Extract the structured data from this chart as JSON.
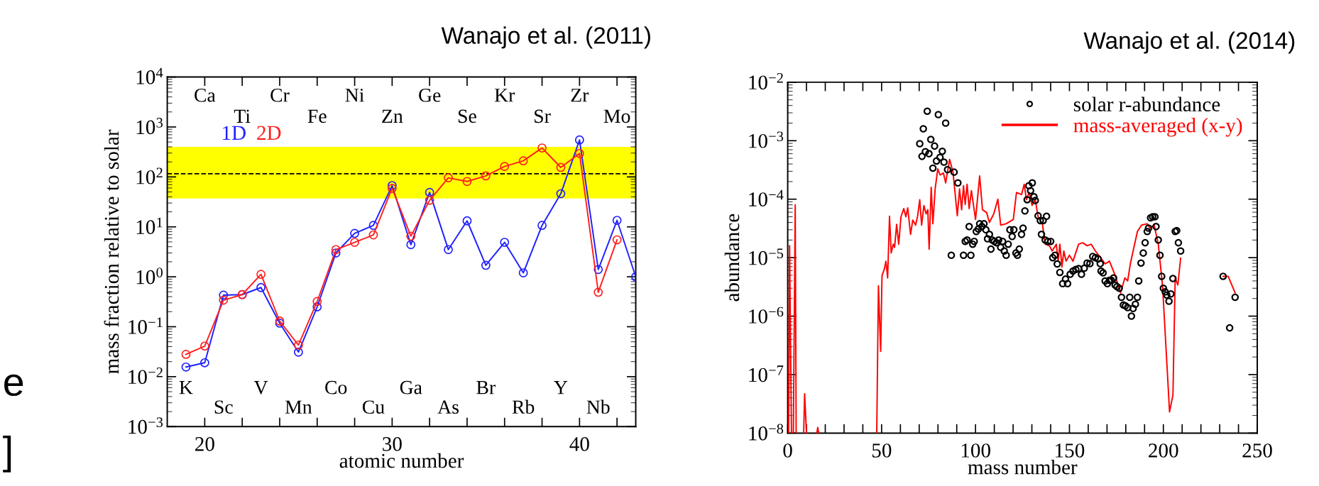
{
  "chart_data": [
    {
      "type": "line",
      "title": "Wanajo et al. (2011)",
      "xlabel": "atomic number",
      "ylabel": "mass fraction relative to solar",
      "log": "y",
      "marker": "circle",
      "line_style": "solid",
      "xlim": [
        18,
        43
      ],
      "ylim": [
        0.001,
        10000
      ],
      "xticks": [
        20,
        {
          "value": 22,
          "label": null
        },
        {
          "value": 24,
          "label": null
        },
        {
          "value": 26,
          "label": null
        },
        {
          "value": 28,
          "label": null
        },
        30,
        {
          "value": 32,
          "label": null
        },
        {
          "value": 34,
          "label": null
        },
        {
          "value": 36,
          "label": null
        },
        {
          "value": 38,
          "label": null
        },
        40,
        {
          "value": 42,
          "label": null
        }
      ],
      "yticks": [
        {
          "value": 0.001,
          "label": "10$^{−3}$"
        },
        {
          "value": 0.01,
          "label": "10$^{−2}$"
        },
        {
          "value": 0.1,
          "label": "10$^{−1}$"
        },
        {
          "value": 1,
          "label": "10$^{0}$"
        },
        {
          "value": 10,
          "label": "10$^{1}$"
        },
        {
          "value": 100,
          "label": "10$^{2}$"
        },
        {
          "value": 1000,
          "label": "10$^{3}$"
        },
        {
          "value": 10000,
          "label": "10$^{4}$"
        }
      ],
      "bands": [
        {
          "axis": "y",
          "from": 37,
          "to": 400,
          "color": "#ffff00"
        }
      ],
      "ref_lines": [
        {
          "axis": "y",
          "value": 116,
          "color": "#000000",
          "line_style": "dashed"
        }
      ],
      "series": [
        {
          "name": "1D",
          "color": "#2020ff",
          "x": [
            19,
            20,
            21,
            22,
            23,
            24,
            25,
            26,
            27,
            28,
            29,
            30,
            31,
            32,
            33,
            34,
            35,
            36,
            37,
            38,
            39,
            40,
            41,
            42,
            43
          ],
          "values": [
            0.0156,
            0.019,
            0.43,
            0.44,
            0.61,
            0.118,
            0.031,
            0.25,
            3.0,
            7.4,
            10.7,
            67,
            4.4,
            49,
            3.5,
            13.2,
            1.7,
            4.9,
            1.2,
            10.7,
            46,
            550,
            1.4,
            13.5,
            1.0
          ]
        },
        {
          "name": "2D",
          "color": "#ff2020",
          "x": [
            19,
            20,
            21,
            22,
            23,
            24,
            25,
            26,
            27,
            28,
            29,
            30,
            31,
            32,
            33,
            34,
            35,
            36,
            37,
            38,
            39,
            40,
            41,
            42
          ],
          "values": [
            0.028,
            0.041,
            0.34,
            0.44,
            1.12,
            0.13,
            0.043,
            0.32,
            3.5,
            4.9,
            6.9,
            59,
            6.5,
            34,
            96,
            81,
            105,
            162,
            210,
            380,
            155,
            295,
            0.49,
            5.5
          ]
        }
      ],
      "annotations": [
        "e",
        "]",
        "Ca",
        "Cr",
        "Ni",
        "Ge",
        "Kr",
        "Zr",
        "Ti",
        "Fe",
        "Zn",
        "Se",
        "Sr",
        "Mo",
        "K",
        "V",
        "Co",
        "Ga",
        "Br",
        "Y",
        "Sc",
        "Mn",
        "Cu",
        "As",
        "Rb",
        "Nb"
      ]
    },
    {
      "type": "line",
      "title": "Wanajo et al. (2014)",
      "xlabel": "mass number",
      "ylabel": "abundance",
      "log": "y",
      "legend": "top right",
      "xlim": [
        0,
        250
      ],
      "ylim": [
        1e-08,
        0.01
      ],
      "xticks": [
        0,
        {
          "value": 10,
          "label": null
        },
        {
          "value": 20,
          "label": null
        },
        {
          "value": 30,
          "label": null
        },
        {
          "value": 40,
          "label": null
        },
        50,
        {
          "value": 60,
          "label": null
        },
        {
          "value": 70,
          "label": null
        },
        {
          "value": 80,
          "label": null
        },
        {
          "value": 90,
          "label": null
        },
        100,
        {
          "value": 110,
          "label": null
        },
        {
          "value": 120,
          "label": null
        },
        {
          "value": 130,
          "label": null
        },
        {
          "value": 140,
          "label": null
        },
        150,
        {
          "value": 160,
          "label": null
        },
        {
          "value": 170,
          "label": null
        },
        {
          "value": 180,
          "label": null
        },
        {
          "value": 190,
          "label": null
        },
        200,
        {
          "value": 210,
          "label": null
        },
        {
          "value": 220,
          "label": null
        },
        {
          "value": 230,
          "label": null
        },
        {
          "value": 240,
          "label": null
        },
        250
      ],
      "yticks": [
        {
          "value": 1e-08,
          "label": "10$^{−8}$"
        },
        {
          "value": 1e-07,
          "label": "10$^{−7}$"
        },
        {
          "value": 1e-06,
          "label": "10$^{−6}$"
        },
        {
          "value": 1e-05,
          "label": "10$^{−5}$"
        },
        {
          "value": 0.0001,
          "label": "10$^{−4}$"
        },
        {
          "value": 0.001,
          "label": "10$^{−3}$"
        },
        {
          "value": 0.01,
          "label": "10$^{−2}$"
        }
      ],
      "series": [
        {
          "name": "solar r-abundance",
          "type": "scatter",
          "marker": "circle",
          "color": "#000000",
          "x": [
            70.3,
            71.5,
            72.2,
            73.3,
            74.3,
            75.2,
            76.2,
            77.3,
            78.2,
            79.2,
            80.2,
            81.1,
            82.3,
            83.2,
            84.1,
            85.1,
            87.1,
            88.6,
            90.6,
            93.6,
            94.5,
            95.5,
            96.6,
            97.5,
            98.5,
            99.3,
            100.4,
            101.5,
            102.2,
            103.4,
            104.5,
            105.5,
            106.4,
            107.4,
            108.2,
            108.9,
            110.0,
            111.1,
            112.3,
            113.4,
            114.4,
            115.3,
            116.3,
            117.4,
            118.3,
            119.5,
            120.4,
            121.5,
            122.3,
            123.3,
            124.5,
            125.3,
            126.3,
            127.5,
            128.4,
            129.3,
            130.2,
            131.1,
            131.8,
            133.3,
            134.5,
            135.1,
            136.0,
            137.1,
            137.8,
            138.5,
            140.0,
            141.1,
            142.3,
            143.5,
            144.9,
            146.4,
            147.9,
            149.0,
            150.4,
            151.9,
            153.4,
            154.9,
            156.4,
            157.9,
            159.4,
            160.9,
            162.4,
            163.8,
            165.3,
            166.4,
            166.8,
            167.9,
            169.0,
            170.2,
            171.3,
            172.3,
            173.5,
            174.3,
            175.3,
            176.5,
            177.7,
            178.7,
            179.8,
            181.0,
            182.1,
            183.0,
            183.9,
            185.1,
            186.2,
            186.9,
            188.1,
            189.3,
            190.3,
            191.4,
            192.1,
            193.2,
            194.3,
            195.5,
            196.1,
            197.3,
            198.2,
            199.1,
            200.0,
            201.0,
            201.8,
            203.0,
            204.0,
            205.1,
            206.3,
            207.1,
            208.0,
            209.2,
            231.8,
            235.3,
            238.2
          ],
          "values": [
            0.00089,
            0.00054,
            0.0016,
            0.00065,
            0.0032,
            0.0006,
            0.00105,
            0.00034,
            0.00081,
            0.00045,
            0.0028,
            0.00052,
            0.00066,
            0.00043,
            0.002,
            0.00032,
            1.1e-05,
            0.00029,
            0.00019,
            1.1e-05,
            1.9e-05,
            2e-05,
            3.4e-05,
            1.1e-05,
            1.7e-05,
            1.9e-05,
            2.8e-05,
            3.1e-05,
            3.8e-05,
            3.4e-05,
            3.8e-05,
            3e-05,
            2.1e-05,
            2.5e-05,
            1.4e-05,
            2e-05,
            1.9e-05,
            1.8e-05,
            2e-05,
            1.5e-05,
            1.9e-05,
            1.3e-05,
            1.1e-05,
            1.7e-05,
            3e-05,
            2.3e-05,
            3e-05,
            1.2e-05,
            1.1e-05,
            1.4e-05,
            2.5e-05,
            3.2e-05,
            6.3e-05,
            9.8e-05,
            0.00017,
            0.00014,
            0.00019,
            0.00011,
            9.5e-05,
            5.2e-05,
            4.3e-05,
            2.5e-05,
            4.3e-05,
            2e-05,
            5.1e-05,
            1.9e-05,
            1.9e-05,
            1e-05,
            1.1e-05,
            7.8e-06,
            5.6e-06,
            3.6e-06,
            4.3e-06,
            3.6e-06,
            5.2e-06,
            5.9e-06,
            6.3e-06,
            6.5e-06,
            5.2e-06,
            6.6e-06,
            8.1e-06,
            7.9e-06,
            1.05e-05,
            1e-05,
            9.5e-06,
            7.9e-06,
            5.9e-06,
            5.5e-06,
            4e-06,
            3.6e-06,
            4.1e-06,
            4.1e-06,
            4.5e-06,
            3.4e-06,
            3.2e-06,
            3e-06,
            2.1e-06,
            1.55e-06,
            1.5e-06,
            1.4e-06,
            2.1e-06,
            1e-06,
            1.35e-06,
            1.6e-06,
            2.1e-06,
            4e-06,
            8.1e-06,
            1.2e-05,
            1.8e-05,
            2.8e-05,
            3.2e-05,
            4.8e-05,
            5e-05,
            5e-05,
            3.4e-05,
            2e-05,
            1.1e-05,
            4.8e-06,
            3e-06,
            2.6e-06,
            2.3e-06,
            1.8e-06,
            2.4e-06,
            4.4e-06,
            2.8e-05,
            2.9e-05,
            1.8e-05,
            1.3e-05,
            4.8e-06,
            6.3e-07,
            2.1e-06
          ]
        },
        {
          "name": "mass-averaged (x-y)",
          "type": "line",
          "color": "#ff0000",
          "x": [
            0.5,
            1,
            2,
            3,
            4,
            4.5,
            6,
            8.5,
            9,
            10,
            13,
            15.5,
            16,
            16.5,
            30,
            47.4,
            48.3,
            49.5,
            50.2,
            51.4,
            52.3,
            53.2,
            54.2,
            55.1,
            56.2,
            56.9,
            58.0,
            59.1,
            60.3,
            61.8,
            62.9,
            63.9,
            65.4,
            66.6,
            68.1,
            69.2,
            70.3,
            71.3,
            72.5,
            73.7,
            74.6,
            75.3,
            76.4,
            77.3,
            78.5,
            79.9,
            81.1,
            82.9,
            84.1,
            86.2,
            88.0,
            90.3,
            91.5,
            92.6,
            93.6,
            94.5,
            95.5,
            96.6,
            97.8,
            100.0,
            102.2,
            103.7,
            105.9,
            107.4,
            109.7,
            111.9,
            113.4,
            116.3,
            120.1,
            121.8,
            124.5,
            125.9,
            127.1,
            128.6,
            130.1,
            131.8,
            133.3,
            135.6,
            137.1,
            139.3,
            140.8,
            143.0,
            144.0,
            144.9,
            146.0,
            147.0,
            148.2,
            150,
            151.9,
            154.9,
            157.1,
            159.4,
            161.6,
            163.8,
            166.8,
            169.0,
            171.3,
            174.3,
            177.2,
            179.5,
            181.0,
            182.4,
            183.9,
            186.2,
            188.4,
            191.4,
            192.9,
            195.1,
            197.3,
            199.6,
            203.3,
            205.1,
            206.3,
            207.7,
            209.2,
            220,
            231.8,
            234.5,
            238.2
          ],
          "values": [
            1e-08,
            1.6e-05,
            1e-08,
            1e-08,
            8e-05,
            1e-08,
            null,
            1e-08,
            4.7e-08,
            1e-08,
            null,
            1e-08,
            1.25e-08,
            1e-08,
            null,
            1e-08,
            3.3e-06,
            2.5e-07,
            4.9e-06,
            6.3e-06,
            8.7e-06,
            4.5e-06,
            5.1e-05,
            1.2e-05,
            1.7e-05,
            1.5e-05,
            3.7e-05,
            1.7e-05,
            5e-05,
            6.9e-05,
            5e-05,
            7.1e-05,
            2.5e-05,
            4.4e-05,
            3.6e-05,
            5.2e-05,
            9.8e-05,
            3.6e-05,
            7.8e-05,
            5.6e-05,
            6.6e-05,
            1.4e-05,
            0.00016,
            3.8e-05,
            0.00015,
            0.00033,
            0.00026,
            0.00028,
            0.00019,
            0.00048,
            0.00029,
            5.2e-05,
            0.00015,
            6.6e-05,
            0.00017,
            8.1e-05,
            0.00018,
            6.9e-05,
            0.00014,
            4.5e-05,
            0.00025,
            6.6e-05,
            5.9e-05,
            4e-05,
            5.6e-05,
            0.0001,
            3.6e-05,
            3.8e-05,
            4.5e-05,
            0.00013,
            0.00012,
            0.00018,
            9.8e-05,
            0.00013,
            7.8e-05,
            9.8e-05,
            5e-05,
            3.8e-05,
            1.7e-05,
            1.6e-05,
            1.3e-05,
            1.7e-05,
            8.7e-06,
            1.7e-05,
            6.9e-06,
            1.3e-05,
            8.7e-06,
            1.1e-05,
            8.7e-06,
            1.7e-05,
            1.8e-05,
            1.6e-05,
            1.7e-05,
            1.3e-05,
            9.8e-06,
            7.8e-06,
            8.7e-06,
            5e-06,
            2.5e-06,
            4.5e-06,
            4e-06,
            7.8e-06,
            1.3e-05,
            2.8e-05,
            3.6e-05,
            3.8e-05,
            3.2e-05,
            3.6e-05,
            1.7e-05,
            3.2e-06,
            2.3e-08,
            4.5e-08,
            4.5e-06,
            3.4e-06,
            9.8e-06,
            null,
            4.8e-06,
            4.8e-06,
            2.5e-06
          ]
        }
      ]
    }
  ]
}
